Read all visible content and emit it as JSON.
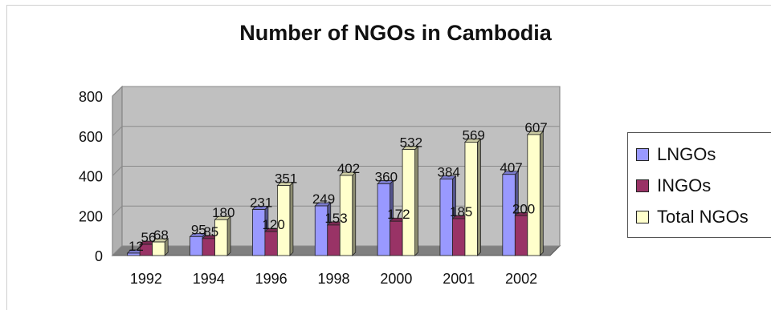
{
  "chart_data": {
    "type": "bar",
    "title": "Number of NGOs in Cambodia",
    "categories": [
      "1992",
      "1994",
      "1996",
      "1998",
      "2000",
      "2001",
      "2002"
    ],
    "series": [
      {
        "name": "LNGOs",
        "values": [
          12,
          95,
          231,
          249,
          360,
          384,
          407
        ],
        "labels": [
          "12",
          "95",
          "231",
          "249",
          "360",
          "384",
          "407"
        ]
      },
      {
        "name": "INGOs",
        "values": [
          56,
          85,
          120,
          153,
          172,
          185,
          200
        ],
        "labels": [
          "56",
          "85",
          "120",
          "153",
          "172",
          "185",
          "200"
        ]
      },
      {
        "name": "Total NGOs",
        "values": [
          68,
          180,
          351,
          402,
          532,
          569,
          607
        ],
        "labels": [
          "68",
          "180",
          "351",
          "402",
          "532",
          "569",
          "607"
        ]
      }
    ],
    "yticks": [
      "0",
      "200",
      "400",
      "600",
      "800"
    ],
    "ylim": [
      0,
      800
    ],
    "grid": true,
    "legend_position": "right",
    "colors": {
      "LNGOs": "#9999ff",
      "INGOs": "#993366",
      "Total NGOs": "#ffffcc",
      "wall": "#c0c0c0",
      "floor": "#808080"
    }
  }
}
